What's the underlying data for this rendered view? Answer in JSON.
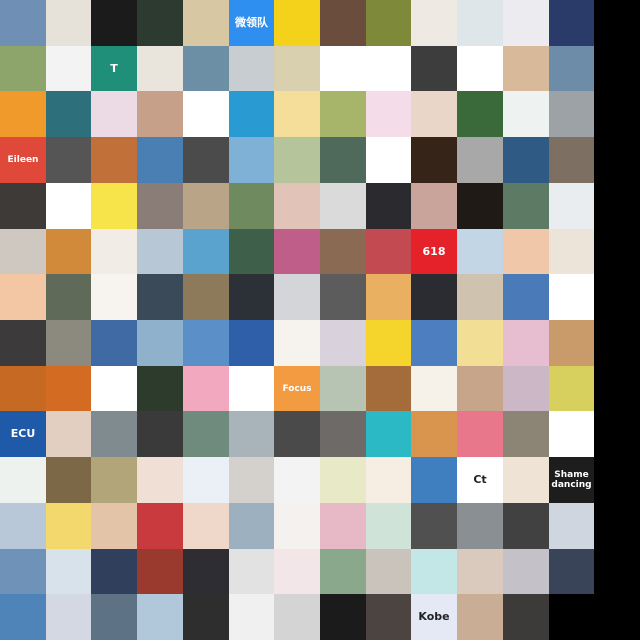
{
  "grid": {
    "columns": 14,
    "rows": 14,
    "empty_color": "#000000"
  },
  "tiles": [
    {
      "color": "#6f8fb4"
    },
    {
      "color": "#e6e2da"
    },
    {
      "color": "#1b1b1b"
    },
    {
      "color": "#2c3a2f"
    },
    {
      "color": "#d8c7a3"
    },
    {
      "color": "#2f8ff0",
      "text": "微领队"
    },
    {
      "color": "#f4d21c"
    },
    {
      "color": "#6b4d3e"
    },
    {
      "color": "#7e8a3a"
    },
    {
      "color": "#efe9e4"
    },
    {
      "color": "#dfe6ea"
    },
    {
      "color": "#ecebef"
    },
    {
      "color": "#2a3b6a"
    },
    {
      "color": "#000000"
    },
    {
      "color": "#8da56a"
    },
    {
      "color": "#f3f3f3"
    },
    {
      "color": "#1f8f7a",
      "text": "T"
    },
    {
      "color": "#e9e4dc"
    },
    {
      "color": "#6d8fa6"
    },
    {
      "color": "#c7cdd1"
    },
    {
      "color": "#d9d0b0"
    },
    {
      "color": "#ffffff"
    },
    {
      "color": "#ffffff"
    },
    {
      "color": "#3d3d3d"
    },
    {
      "color": "#ffffff"
    },
    {
      "color": "#d8b99a"
    },
    {
      "color": "#6c8ca8"
    },
    {
      "color": "#000000"
    },
    {
      "color": "#f09a2c"
    },
    {
      "color": "#2d6f7a"
    },
    {
      "color": "#ecdbe5"
    },
    {
      "color": "#c7a089"
    },
    {
      "color": "#ffffff"
    },
    {
      "color": "#2a9ad3"
    },
    {
      "color": "#f5dd9a"
    },
    {
      "color": "#a7b56a"
    },
    {
      "color": "#f4dce8"
    },
    {
      "color": "#e9d6c9"
    },
    {
      "color": "#3b6a3a"
    },
    {
      "color": "#eef2f0"
    },
    {
      "color": "#9da2a6"
    },
    {
      "color": "#000000"
    },
    {
      "color": "#e0493a",
      "text": "Eileen"
    },
    {
      "color": "#555555"
    },
    {
      "color": "#c2703a"
    },
    {
      "color": "#4a7fb4"
    },
    {
      "color": "#4b4b4b"
    },
    {
      "color": "#7fb0d6"
    },
    {
      "color": "#b6c49c"
    },
    {
      "color": "#4f6a5a"
    },
    {
      "color": "#ffffff"
    },
    {
      "color": "#362418"
    },
    {
      "color": "#a8a8a8"
    },
    {
      "color": "#2e5a84"
    },
    {
      "color": "#7d6f62"
    },
    {
      "color": "#000000"
    },
    {
      "color": "#3d3a38"
    },
    {
      "color": "#ffffff"
    },
    {
      "color": "#f6e44a"
    },
    {
      "color": "#8a7d78"
    },
    {
      "color": "#b9a487"
    },
    {
      "color": "#6f8a5e"
    },
    {
      "color": "#e2c3b8"
    },
    {
      "color": "#dadada"
    },
    {
      "color": "#2b2a2e"
    },
    {
      "color": "#c8a49a"
    },
    {
      "color": "#1f1a16"
    },
    {
      "color": "#5d7a65"
    },
    {
      "color": "#e9edf0"
    },
    {
      "color": "#000000"
    },
    {
      "color": "#cfc8c0"
    },
    {
      "color": "#d08a3a"
    },
    {
      "color": "#f2ece6"
    },
    {
      "color": "#b7c7d6"
    },
    {
      "color": "#5aa3cf"
    },
    {
      "color": "#3e5f49"
    },
    {
      "color": "#c05e8a"
    },
    {
      "color": "#8a6a52"
    },
    {
      "color": "#c24a50"
    },
    {
      "color": "#e5222a",
      "text": "618"
    },
    {
      "color": "#c3d6e6"
    },
    {
      "color": "#f1c7a9"
    },
    {
      "color": "#ece4d8"
    },
    {
      "color": "#000000"
    },
    {
      "color": "#f3c7a4"
    },
    {
      "color": "#5f6a58"
    },
    {
      "color": "#f7f4ef"
    },
    {
      "color": "#3a4a58"
    },
    {
      "color": "#8d7a5a"
    },
    {
      "color": "#2b3136"
    },
    {
      "color": "#d3d5d8"
    },
    {
      "color": "#5c5c5c"
    },
    {
      "color": "#e9b061"
    },
    {
      "color": "#2b2b32"
    },
    {
      "color": "#cfc2ae"
    },
    {
      "color": "#4a7ab8"
    },
    {
      "color": "#ffffff"
    },
    {
      "color": "#000000"
    },
    {
      "color": "#3c3a3a"
    },
    {
      "color": "#8c8a7e"
    },
    {
      "color": "#3f6aa4"
    },
    {
      "color": "#8fb1cc"
    },
    {
      "color": "#5a8fc7"
    },
    {
      "color": "#2f5fa8"
    },
    {
      "color": "#f6f3ee"
    },
    {
      "color": "#d9d2dc"
    },
    {
      "color": "#f5d52b"
    },
    {
      "color": "#4d7ebf"
    },
    {
      "color": "#f3de95"
    },
    {
      "color": "#e7bed0"
    },
    {
      "color": "#c99b6a"
    },
    {
      "color": "#000000"
    },
    {
      "color": "#c66a23"
    },
    {
      "color": "#d36c22"
    },
    {
      "color": "#ffffff"
    },
    {
      "color": "#2d3b2c"
    },
    {
      "color": "#f2a9c0"
    },
    {
      "color": "#ffffff"
    },
    {
      "color": "#f39b40",
      "text": "Focus"
    },
    {
      "color": "#b7c4b3"
    },
    {
      "color": "#a46c3a"
    },
    {
      "color": "#f6f1e9"
    },
    {
      "color": "#c6a58b"
    },
    {
      "color": "#cbb7c6"
    },
    {
      "color": "#d7cf5e"
    },
    {
      "color": "#000000"
    },
    {
      "color": "#1f5aa8",
      "text": "ECU"
    },
    {
      "color": "#e2cfc2"
    },
    {
      "color": "#7f8b8f"
    },
    {
      "color": "#3a3a3a"
    },
    {
      "color": "#6f8b7d"
    },
    {
      "color": "#a9b4ba"
    },
    {
      "color": "#4a4a4a"
    },
    {
      "color": "#6d6a68"
    },
    {
      "color": "#2bb9c6"
    },
    {
      "color": "#d9954e"
    },
    {
      "color": "#e8778c"
    },
    {
      "color": "#8c8474"
    },
    {
      "color": "#ffffff"
    },
    {
      "color": "#000000"
    },
    {
      "color": "#eef2ee"
    },
    {
      "color": "#7c6846"
    },
    {
      "color": "#b3a57a"
    },
    {
      "color": "#f0dfd4"
    },
    {
      "color": "#eaf0f6"
    },
    {
      "color": "#d4d0cc"
    },
    {
      "color": "#f3f3f3"
    },
    {
      "color": "#e8eac7"
    },
    {
      "color": "#f6ede3"
    },
    {
      "color": "#3f7fc0"
    },
    {
      "color": "#ffffff",
      "text": "Ct",
      "dark": true
    },
    {
      "color": "#efe3d6"
    },
    {
      "color": "#1d1d1d",
      "text": "Shame dancing"
    },
    {
      "color": "#000000"
    },
    {
      "color": "#b8c8d8"
    },
    {
      "color": "#f3d86e"
    },
    {
      "color": "#e3c4a8"
    },
    {
      "color": "#c93a3e"
    },
    {
      "color": "#efd7c9"
    },
    {
      "color": "#9db0c0"
    },
    {
      "color": "#f4f1ef"
    },
    {
      "color": "#e7b8c6"
    },
    {
      "color": "#cfe3d8"
    },
    {
      "color": "#505050"
    },
    {
      "color": "#8a8f94"
    },
    {
      "color": "#414141"
    },
    {
      "color": "#d0d6df"
    },
    {
      "color": "#000000"
    },
    {
      "color": "#6f93b8"
    },
    {
      "color": "#d7e2ea"
    },
    {
      "color": "#2f3f5c"
    },
    {
      "color": "#9a3a2e"
    },
    {
      "color": "#2d2d33"
    },
    {
      "color": "#e2e2e2"
    },
    {
      "color": "#f2e6e9"
    },
    {
      "color": "#8aa88c"
    },
    {
      "color": "#cac3bc"
    },
    {
      "color": "#c3e6e6"
    },
    {
      "color": "#dac9bd"
    },
    {
      "color": "#c4c2c8"
    },
    {
      "color": "#3a4458"
    },
    {
      "color": "#000000"
    },
    {
      "color": "#4f84b8"
    },
    {
      "color": "#d3d8e2"
    },
    {
      "color": "#5e7286"
    },
    {
      "color": "#b0c8da"
    },
    {
      "color": "#2e2e2e"
    },
    {
      "color": "#f0f0f0"
    },
    {
      "color": "#d4d4d4"
    },
    {
      "color": "#1b1b1b"
    },
    {
      "color": "#4c4440"
    },
    {
      "color": "#e4e9f5",
      "text": "Kobe",
      "dark": true
    },
    {
      "color": "#c9ad94"
    },
    {
      "color": "#3c3b3a"
    },
    {
      "color": "#000000"
    },
    {
      "color": "#000000"
    }
  ]
}
